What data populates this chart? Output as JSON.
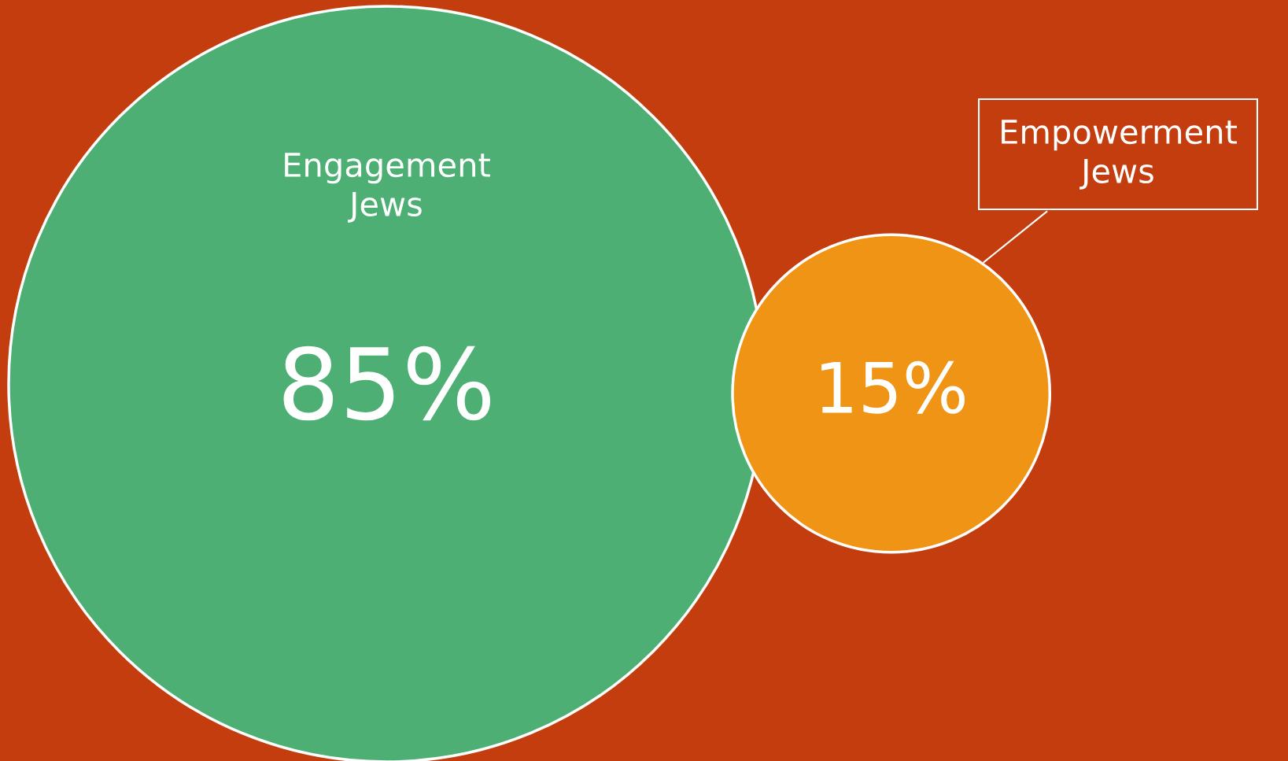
{
  "chart_data": {
    "type": "other",
    "categories": [
      "Engagement\nJews",
      "Empowerment\nJews"
    ],
    "values": [
      85,
      15
    ],
    "value_labels": [
      "85%",
      "15%"
    ],
    "colors": [
      "#4daf74",
      "#f09416"
    ]
  }
}
